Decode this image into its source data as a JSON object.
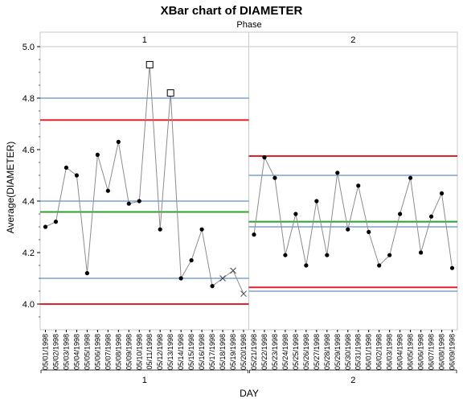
{
  "chart_data": {
    "type": "line",
    "title": "XBar chart of DIAMETER",
    "phase_title": "Phase",
    "ylabel": "Average(DIAMETER)",
    "xlabel": "DAY",
    "ylim": [
      3.9,
      5.0
    ],
    "y_ticks": [
      "4.0",
      "4.2",
      "4.4",
      "4.6",
      "4.8",
      "5.0"
    ],
    "y_tick_values": [
      4.0,
      4.2,
      4.4,
      4.6,
      4.8,
      5.0
    ],
    "colors": {
      "ucl_lcl": "#e8202a",
      "center": "#2ca02c",
      "sigma": "#3b6fd6",
      "series": "#8c8c8c",
      "marker": "#000000"
    },
    "phases": [
      {
        "label": "1",
        "days": [
          "05/01/1998",
          "05/02/1998",
          "05/03/1998",
          "05/04/1998",
          "05/05/1998",
          "05/06/1998",
          "05/07/1998",
          "05/08/1998",
          "05/09/1998",
          "05/10/1998",
          "05/11/1998",
          "05/12/1998",
          "05/13/1998",
          "05/14/1998",
          "05/15/1998",
          "05/16/1998",
          "05/17/1998",
          "05/18/1998",
          "05/19/1998",
          "05/20/1998"
        ],
        "values": [
          4.3,
          4.32,
          4.53,
          4.5,
          4.12,
          4.58,
          4.44,
          4.63,
          4.39,
          4.4,
          4.93,
          4.29,
          4.82,
          4.1,
          4.17,
          4.29,
          4.07,
          4.1,
          4.13,
          4.04
        ],
        "markers": [
          "dot",
          "dot",
          "dot",
          "dot",
          "dot",
          "dot",
          "dot",
          "dot",
          "dot",
          "dot",
          "square",
          "dot",
          "square",
          "dot",
          "dot",
          "dot",
          "dot",
          "x",
          "x",
          "x"
        ],
        "ucl": 4.715,
        "lcl": 4.0,
        "center": 4.358,
        "sigma_lines": [
          4.8,
          4.4,
          4.1
        ]
      },
      {
        "label": "2",
        "days": [
          "05/21/1998",
          "05/22/1998",
          "05/23/1998",
          "05/24/1998",
          "05/25/1998",
          "05/26/1998",
          "05/27/1998",
          "05/28/1998",
          "05/29/1998",
          "05/30/1998",
          "05/31/1998",
          "06/01/1998",
          "06/02/1998",
          "06/03/1998",
          "06/04/1998",
          "06/05/1998",
          "06/06/1998",
          "06/07/1998",
          "06/08/1998",
          "06/09/1998"
        ],
        "values": [
          4.27,
          4.57,
          4.49,
          4.19,
          4.35,
          4.15,
          4.4,
          4.19,
          4.51,
          4.29,
          4.46,
          4.28,
          4.15,
          4.19,
          4.35,
          4.49,
          4.2,
          4.34,
          4.43,
          4.14
        ],
        "markers": [
          "dot",
          "dot",
          "dot",
          "dot",
          "dot",
          "dot",
          "dot",
          "dot",
          "dot",
          "dot",
          "dot",
          "dot",
          "dot",
          "dot",
          "dot",
          "dot",
          "dot",
          "dot",
          "dot",
          "dot"
        ],
        "ucl": 4.575,
        "lcl": 4.065,
        "center": 4.32,
        "sigma_lines": [
          4.5,
          4.3,
          4.05
        ]
      }
    ]
  }
}
